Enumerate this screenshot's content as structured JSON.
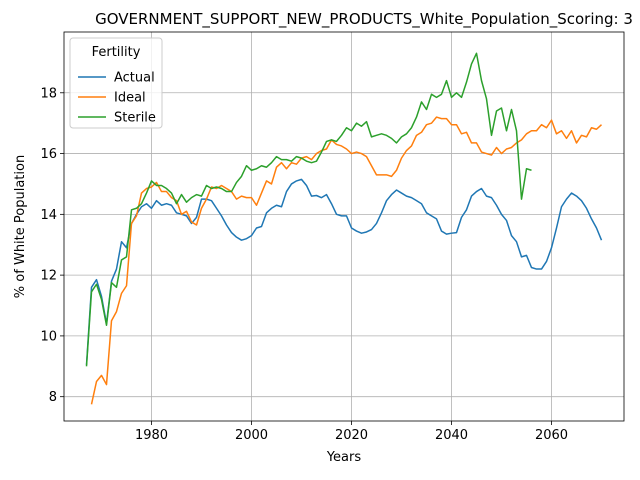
{
  "chart_data": {
    "type": "line",
    "title": "GOVERNMENT_SUPPORT_NEW_PRODUCTS_White_Population_Scoring: 3",
    "xlabel": "Years",
    "ylabel": "% of White Population",
    "xlim": [
      2061.5,
      2074.5
    ],
    "ylim": [
      7.2,
      20.0
    ],
    "xticks": [
      1980,
      2000,
      2020,
      2040,
      2060
    ],
    "yticks": [
      8,
      10,
      12,
      14,
      16,
      18
    ],
    "grid": true,
    "legend": {
      "title": "Fertility",
      "position": "upper-left"
    },
    "series": [
      {
        "name": "Actual",
        "color": "#1f77b4",
        "x": [
          1967,
          1968,
          1969,
          1970,
          1971,
          1972,
          1973,
          1974,
          1975,
          1976,
          1977,
          1978,
          1979,
          1980,
          1981,
          1982,
          1983,
          1984,
          1985,
          1986,
          1987,
          1988,
          1989,
          1990,
          1991,
          1992,
          1993,
          1994,
          1995,
          1996,
          1997,
          1998,
          1999,
          2000,
          2001,
          2002,
          2003,
          2004,
          2005,
          2006,
          2007,
          2008,
          2009,
          2010,
          2011,
          2012,
          2013,
          2014,
          2015,
          2016,
          2017,
          2018,
          2019,
          2020,
          2021,
          2022,
          2023,
          2024,
          2025,
          2026,
          2027,
          2028,
          2029,
          2030,
          2031,
          2032,
          2033,
          2034,
          2035,
          2036,
          2037,
          2038,
          2039,
          2040,
          2041,
          2042,
          2043,
          2044,
          2045,
          2046,
          2047,
          2048,
          2049,
          2050,
          2051,
          2052,
          2053,
          2054,
          2055,
          2056,
          2057,
          2058,
          2059,
          2060,
          2061,
          2062,
          2063,
          2064,
          2065,
          2066,
          2067,
          2068,
          2069,
          2070
        ],
        "y": [
          9.05,
          11.6,
          11.85,
          11.3,
          10.4,
          11.8,
          12.2,
          13.1,
          12.9,
          13.7,
          14.0,
          14.25,
          14.35,
          14.2,
          14.45,
          14.3,
          14.35,
          14.3,
          14.05,
          14.0,
          13.95,
          13.7,
          13.9,
          14.5,
          14.5,
          14.45,
          14.2,
          13.95,
          13.65,
          13.4,
          13.25,
          13.15,
          13.2,
          13.3,
          13.55,
          13.6,
          14.05,
          14.2,
          14.3,
          14.25,
          14.75,
          15.0,
          15.1,
          15.15,
          14.95,
          14.6,
          14.62,
          14.55,
          14.65,
          14.35,
          14.0,
          13.95,
          13.95,
          13.55,
          13.45,
          13.38,
          13.42,
          13.5,
          13.7,
          14.05,
          14.45,
          14.65,
          14.8,
          14.7,
          14.6,
          14.55,
          14.45,
          14.35,
          14.05,
          13.95,
          13.85,
          13.45,
          13.35,
          13.38,
          13.4,
          13.9,
          14.15,
          14.6,
          14.75,
          14.85,
          14.6,
          14.55,
          14.3,
          14.0,
          13.8,
          13.3,
          13.1,
          12.6,
          12.65,
          12.25,
          12.2,
          12.2,
          12.45,
          12.9,
          13.55,
          14.25,
          14.5,
          14.7,
          14.6,
          14.45,
          14.2,
          13.85,
          13.55,
          13.15
        ]
      },
      {
        "name": "Ideal",
        "color": "#ff7f0e",
        "x": [
          1968,
          1969,
          1970,
          1971,
          1972,
          1973,
          1974,
          1975,
          1976,
          1977,
          1978,
          1979,
          1980,
          1981,
          1982,
          1983,
          1984,
          1985,
          1986,
          1987,
          1988,
          1989,
          1990,
          1991,
          1992,
          1993,
          1994,
          1995,
          1996,
          1997,
          1998,
          1999,
          2000,
          2001,
          2002,
          2003,
          2004,
          2005,
          2006,
          2007,
          2008,
          2009,
          2010,
          2011,
          2012,
          2013,
          2014,
          2015,
          2016,
          2017,
          2018,
          2019,
          2020,
          2021,
          2022,
          2023,
          2024,
          2025,
          2026,
          2027,
          2028,
          2029,
          2030,
          2031,
          2032,
          2033,
          2034,
          2035,
          2036,
          2037,
          2038,
          2039,
          2040,
          2041,
          2042,
          2043,
          2044,
          2045,
          2046,
          2047,
          2048,
          2049,
          2050,
          2051,
          2052,
          2053,
          2054,
          2055,
          2056,
          2057,
          2058,
          2059,
          2060,
          2061,
          2062,
          2063,
          2064,
          2065,
          2066,
          2067,
          2068,
          2069,
          2070
        ],
        "y": [
          7.75,
          8.5,
          8.7,
          8.4,
          10.5,
          10.8,
          11.4,
          11.65,
          13.7,
          13.95,
          14.7,
          14.85,
          14.9,
          15.05,
          14.75,
          14.75,
          14.55,
          14.45,
          14.0,
          14.1,
          13.75,
          13.65,
          14.2,
          14.5,
          14.9,
          14.85,
          14.95,
          14.85,
          14.75,
          14.5,
          14.6,
          14.55,
          14.55,
          14.3,
          14.7,
          15.1,
          15.0,
          15.55,
          15.7,
          15.5,
          15.7,
          15.65,
          15.85,
          15.9,
          15.8,
          16.0,
          16.1,
          16.15,
          16.45,
          16.3,
          16.25,
          16.15,
          16.0,
          16.05,
          16.0,
          15.9,
          15.6,
          15.3,
          15.3,
          15.3,
          15.25,
          15.45,
          15.85,
          16.1,
          16.25,
          16.6,
          16.7,
          16.95,
          17.0,
          17.2,
          17.15,
          17.15,
          16.95,
          16.95,
          16.65,
          16.7,
          16.35,
          16.35,
          16.05,
          16.0,
          15.95,
          16.2,
          16.0,
          16.15,
          16.2,
          16.35,
          16.45,
          16.65,
          16.75,
          16.75,
          16.95,
          16.85,
          17.1,
          16.65,
          16.75,
          16.5,
          16.75,
          16.35,
          16.6,
          16.55,
          16.85,
          16.8,
          16.95
        ]
      },
      {
        "name": "Sterile",
        "color": "#2ca02c",
        "x": [
          1967,
          1968,
          1969,
          1970,
          1971,
          1972,
          1973,
          1974,
          1975,
          1976,
          1977,
          1978,
          1979,
          1980,
          1981,
          1982,
          1983,
          1984,
          1985,
          1986,
          1987,
          1988,
          1989,
          1990,
          1991,
          1992,
          1993,
          1994,
          1995,
          1996,
          1997,
          1998,
          1999,
          2000,
          2001,
          2002,
          2003,
          2004,
          2005,
          2006,
          2007,
          2008,
          2009,
          2010,
          2011,
          2012,
          2013,
          2014,
          2015,
          2016,
          2017,
          2018,
          2019,
          2020,
          2021,
          2022,
          2023,
          2024,
          2025,
          2026,
          2027,
          2028,
          2029,
          2030,
          2031,
          2032,
          2033,
          2034,
          2035,
          2036,
          2037,
          2038,
          2039,
          2040,
          2041,
          2042,
          2043,
          2044,
          2045,
          2046,
          2047,
          2048,
          2049,
          2050,
          2051,
          2052,
          2053,
          2054,
          2055,
          2056
        ],
        "y": [
          9.0,
          11.45,
          11.7,
          11.2,
          10.35,
          11.75,
          11.6,
          12.5,
          12.6,
          14.15,
          14.2,
          14.35,
          14.7,
          15.1,
          14.95,
          14.95,
          14.85,
          14.7,
          14.35,
          14.65,
          14.4,
          14.55,
          14.65,
          14.6,
          14.95,
          14.85,
          14.9,
          14.85,
          14.75,
          14.75,
          15.05,
          15.25,
          15.6,
          15.45,
          15.5,
          15.6,
          15.55,
          15.7,
          15.9,
          15.8,
          15.8,
          15.75,
          15.9,
          15.85,
          15.75,
          15.7,
          15.75,
          16.05,
          16.4,
          16.45,
          16.4,
          16.6,
          16.85,
          16.75,
          17.0,
          16.9,
          17.05,
          16.55,
          16.6,
          16.65,
          16.6,
          16.5,
          16.35,
          16.55,
          16.65,
          16.85,
          17.2,
          17.7,
          17.45,
          17.95,
          17.85,
          17.95,
          18.4,
          17.85,
          18.0,
          17.85,
          18.35,
          18.95,
          19.3,
          18.4,
          17.8,
          16.6,
          17.4,
          17.5,
          16.75,
          17.45,
          16.75,
          14.5,
          15.5,
          15.45
        ]
      }
    ]
  }
}
